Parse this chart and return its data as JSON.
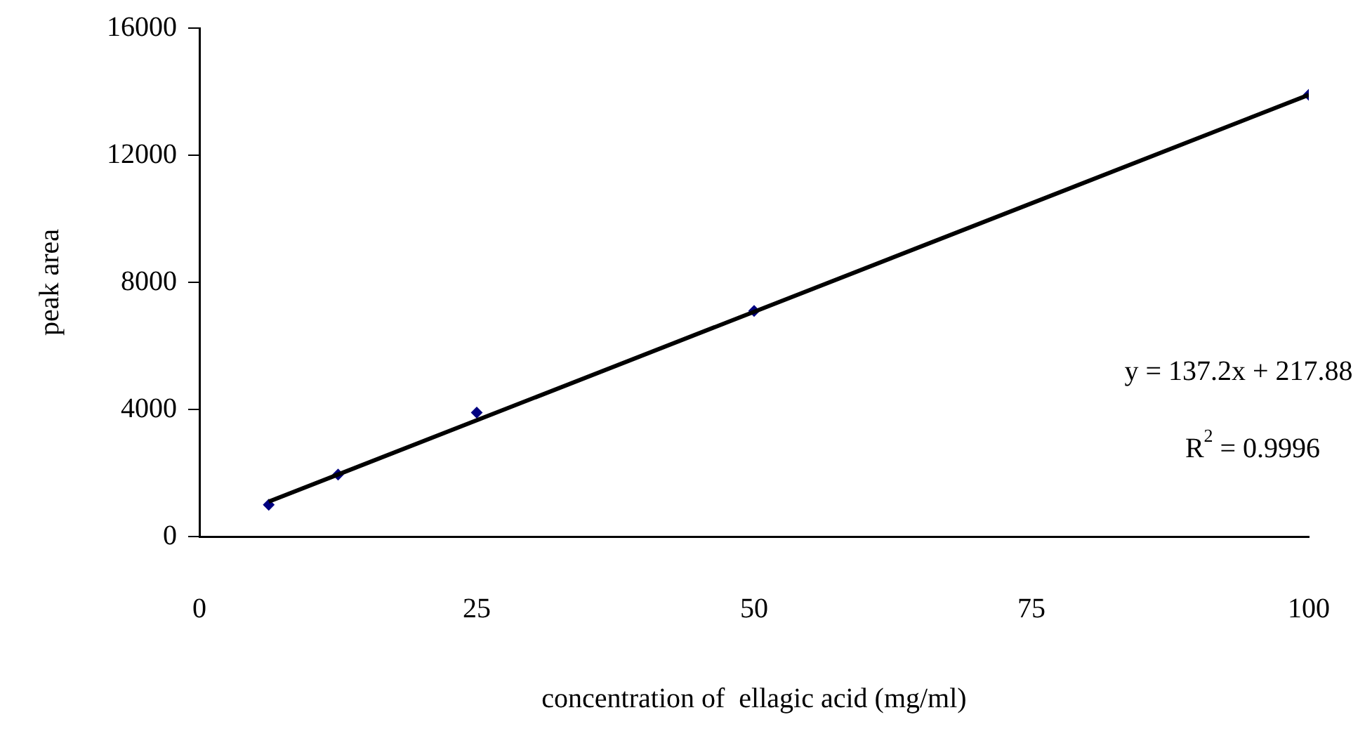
{
  "chart_data": {
    "type": "scatter",
    "xlabel": "concentration of  ellagic acid (mg/ml)",
    "ylabel": "peak area",
    "x": [
      6.25,
      12.5,
      25,
      50,
      100
    ],
    "series": [
      {
        "color": "#000080",
        "values": [
          1000,
          1950,
          3900,
          7100,
          13900
        ],
        "marker": "diamond"
      },
      {
        "type": "line",
        "color": "#000000",
        "x": [
          6.25,
          100
        ],
        "values": [
          1100,
          13900
        ],
        "marker": "none"
      }
    ],
    "xlim": [
      0,
      100
    ],
    "xticks": [
      0,
      25,
      50,
      75,
      100
    ],
    "ylim": [
      0,
      16000
    ],
    "yticks": [
      0,
      4000,
      8000,
      12000,
      16000
    ],
    "grid": false,
    "legend": false,
    "annotations": [
      "y = 137.2x + 217.88",
      "R$^{2}$ = 0.9996"
    ]
  }
}
